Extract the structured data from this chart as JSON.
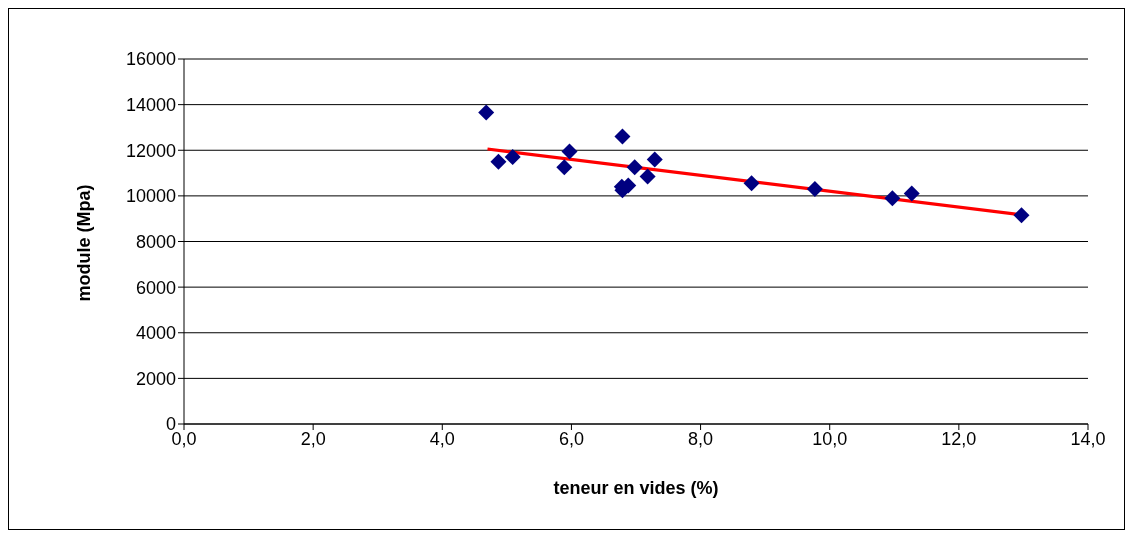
{
  "chart_data": {
    "type": "scatter",
    "xlabel": "teneur en vides (%)",
    "ylabel": "module (Mpa)",
    "series": [
      {
        "color": "#000080",
        "marker": "diamond",
        "x": [
          4.68,
          4.87,
          5.09,
          5.97,
          5.89,
          6.79,
          6.79,
          6.88,
          6.78,
          6.98,
          7.18,
          7.29,
          8.79,
          9.77,
          10.97,
          11.27,
          12.97
        ],
        "values": [
          13650,
          11500,
          11700,
          11950,
          11250,
          12600,
          10250,
          10450,
          10400,
          11250,
          10850,
          11600,
          10550,
          10300,
          9900,
          10100,
          9150
        ]
      },
      {
        "type": "line",
        "color": "#ff0000",
        "x": [
          4.7,
          12.97
        ],
        "values": [
          12050,
          9170
        ]
      }
    ],
    "xlim": [
      0,
      14
    ],
    "xticks": [
      {
        "value": 0,
        "label": "0,0"
      },
      {
        "value": 2,
        "label": "2,0"
      },
      {
        "value": 4,
        "label": "4,0"
      },
      {
        "value": 6,
        "label": "6,0"
      },
      {
        "value": 8,
        "label": "8,0"
      },
      {
        "value": 10,
        "label": "10,0"
      },
      {
        "value": 12,
        "label": "12,0"
      },
      {
        "value": 14,
        "label": "14,0"
      }
    ],
    "ylim": [
      0,
      16000
    ],
    "yticks": [
      0,
      2000,
      4000,
      6000,
      8000,
      10000,
      12000,
      14000,
      16000
    ],
    "grid": "y",
    "legend": false,
    "line_style": "solid"
  }
}
